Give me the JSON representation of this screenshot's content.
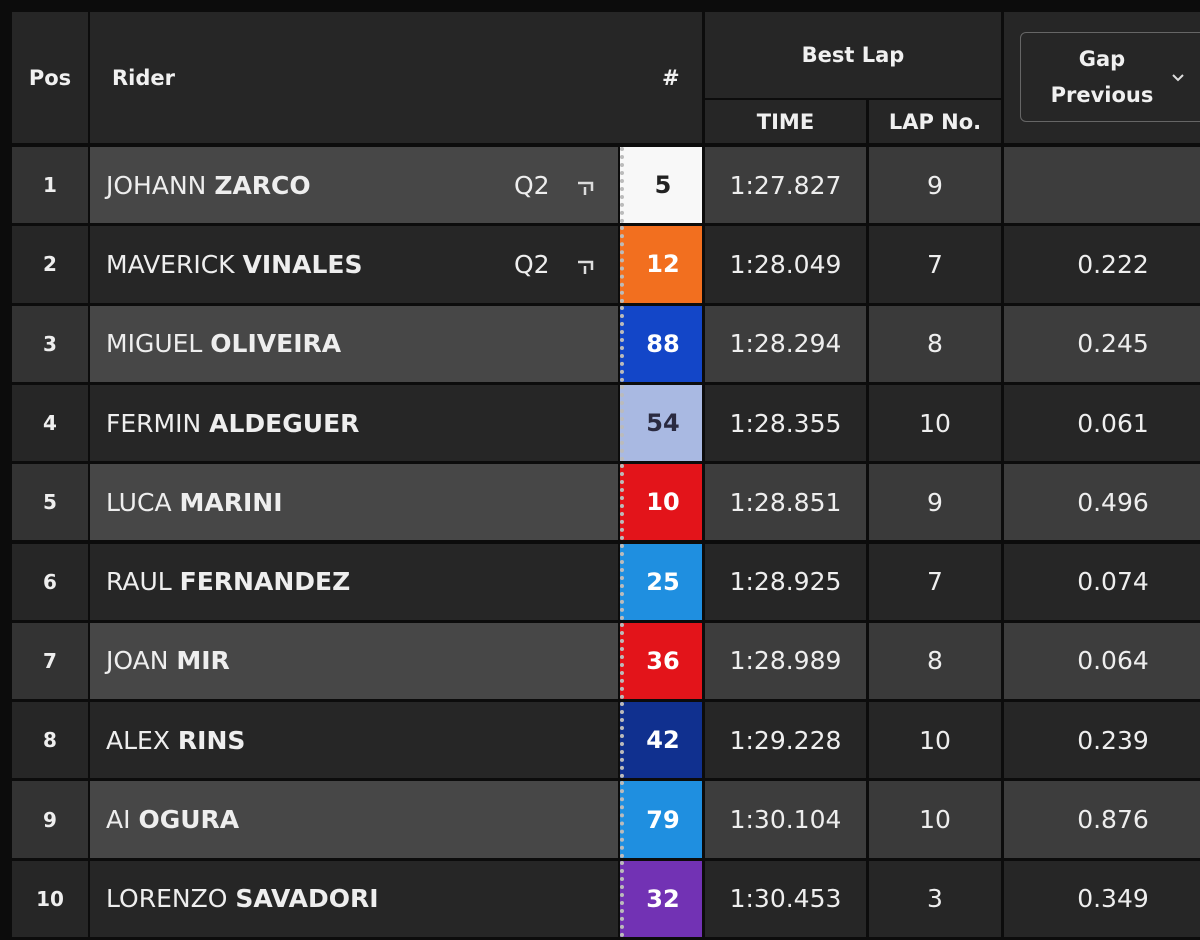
{
  "header": {
    "pos": "Pos",
    "rider": "Rider",
    "number": "#",
    "best_lap": "Best Lap",
    "time": "TIME",
    "lap_no": "LAP No.",
    "gap_line1": "Gap",
    "gap_line2": "Previous"
  },
  "table": {
    "rows": [
      {
        "pos": "1",
        "first": "JOHANN",
        "last": "ZARCO",
        "tag": "Q2",
        "number": "5",
        "color": "#f8f8f8",
        "text_color": "#222222",
        "time": "1:27.827",
        "lap": "9",
        "gap": null
      },
      {
        "pos": "2",
        "first": "MAVERICK",
        "last": "VINALES",
        "tag": "Q2",
        "number": "12",
        "color": "#f26f1f",
        "text_color": "#ffffff",
        "time": "1:28.049",
        "lap": "7",
        "gap": "0.222"
      },
      {
        "pos": "3",
        "first": "MIGUEL",
        "last": "OLIVEIRA",
        "tag": null,
        "number": "88",
        "color": "#1346c8",
        "text_color": "#ffffff",
        "time": "1:28.294",
        "lap": "8",
        "gap": "0.245"
      },
      {
        "pos": "4",
        "first": "FERMIN",
        "last": "ALDEGUER",
        "tag": null,
        "number": "54",
        "color": "#a9b9e2",
        "text_color": "#2a2a40",
        "time": "1:28.355",
        "lap": "10",
        "gap": "0.061"
      },
      {
        "pos": "5",
        "first": "LUCA",
        "last": "MARINI",
        "tag": null,
        "number": "10",
        "color": "#e3141a",
        "text_color": "#ffffff",
        "time": "1:28.851",
        "lap": "9",
        "gap": "0.496"
      },
      {
        "pos": "6",
        "first": "RAUL",
        "last": "FERNANDEZ",
        "tag": null,
        "number": "25",
        "color": "#1f8fe0",
        "text_color": "#ffffff",
        "time": "1:28.925",
        "lap": "7",
        "gap": "0.074"
      },
      {
        "pos": "7",
        "first": "JOAN",
        "last": "MIR",
        "tag": null,
        "number": "36",
        "color": "#e3141a",
        "text_color": "#ffffff",
        "time": "1:28.989",
        "lap": "8",
        "gap": "0.064"
      },
      {
        "pos": "8",
        "first": "ALEX",
        "last": "RINS",
        "tag": null,
        "number": "42",
        "color": "#10308f",
        "text_color": "#ffffff",
        "time": "1:29.228",
        "lap": "10",
        "gap": "0.239"
      },
      {
        "pos": "9",
        "first": "AI",
        "last": "OGURA",
        "tag": null,
        "number": "79",
        "color": "#1f8fe0",
        "text_color": "#ffffff",
        "time": "1:30.104",
        "lap": "10",
        "gap": "0.876"
      },
      {
        "pos": "10",
        "first": "LORENZO",
        "last": "SAVADORI",
        "tag": null,
        "number": "32",
        "color": "#7232b4",
        "text_color": "#ffffff",
        "time": "1:30.453",
        "lap": "3",
        "gap": "0.349"
      }
    ]
  }
}
